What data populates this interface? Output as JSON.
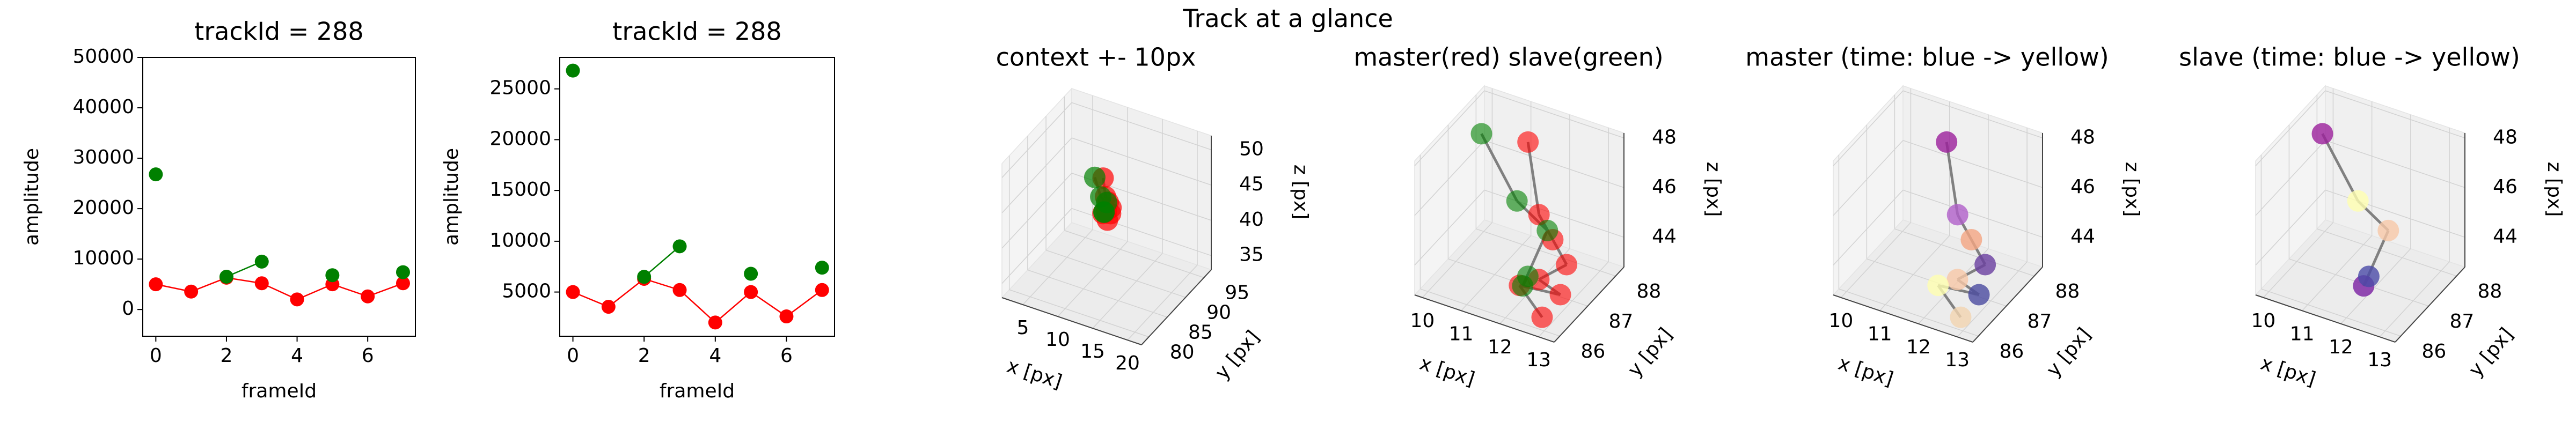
{
  "title": "Track at a glance",
  "chart_data": [
    {
      "type": "line",
      "title": "trackId = 288",
      "xlabel": "frameId",
      "ylabel": "amplitude",
      "x": [
        0,
        1,
        2,
        3,
        4,
        5,
        6,
        7
      ],
      "series": [
        {
          "color": "#ff0000",
          "values": [
            5000,
            3550,
            6300,
            5200,
            2000,
            5000,
            2600,
            5200
          ]
        },
        {
          "color": "#008000",
          "values": [
            26800,
            null,
            6500,
            9500,
            null,
            6800,
            null,
            7400
          ]
        }
      ],
      "xlim": [
        -0.37,
        7.35
      ],
      "xticks": [
        0,
        2,
        4,
        6
      ],
      "ylim": [
        -5300,
        50000
      ],
      "yticks": [
        0,
        10000,
        20000,
        30000,
        40000,
        50000
      ]
    },
    {
      "type": "line",
      "title": "trackId = 288",
      "xlabel": "frameId",
      "ylabel": "amplitude",
      "x": [
        0,
        1,
        2,
        3,
        4,
        5,
        6,
        7
      ],
      "series": [
        {
          "color": "#ff0000",
          "values": [
            5000,
            3550,
            6300,
            5200,
            2000,
            5000,
            2600,
            5200
          ]
        },
        {
          "color": "#008000",
          "values": [
            26800,
            null,
            6500,
            9500,
            null,
            6800,
            null,
            7400
          ]
        }
      ],
      "xlim": [
        -0.37,
        7.35
      ],
      "xticks": [
        0,
        2,
        4,
        6
      ],
      "ylim": [
        650,
        28100
      ],
      "yticks": [
        5000,
        10000,
        15000,
        20000,
        25000
      ]
    },
    {
      "type": "scatter3d",
      "title": "context +- 10px",
      "xlabel": "x [px]",
      "ylabel": "y [px]",
      "zlabel": "z [px]",
      "line_color": "#808080",
      "series": [
        {
          "color": "#ff0000",
          "alpha": 0.7,
          "x": [
            11.5,
            12.0,
            12.5,
            13.0,
            12.5,
            13.2,
            12.0,
            12.8
          ],
          "y": [
            87.5,
            87.2,
            87.0,
            86.8,
            86.5,
            86.3,
            86.5,
            86.2
          ],
          "z": [
            47.8,
            45.5,
            45.0,
            44.5,
            44.0,
            44.0,
            43.5,
            43.0
          ]
        },
        {
          "color": "#008000",
          "alpha": 0.7,
          "x": [
            10.3,
            11.0,
            12.0,
            12.3,
            12.0
          ],
          "y": [
            87.5,
            87.8,
            87.5,
            86.2,
            86.8
          ],
          "z": [
            47.5,
            44.8,
            44.5,
            44.0,
            43.5
          ]
        }
      ],
      "xlim": [
        2,
        22
      ],
      "xticks": [
        5,
        10,
        15,
        20
      ],
      "ylim": [
        78,
        97
      ],
      "yticks": [
        80,
        85,
        90,
        95
      ],
      "zlim": [
        33,
        52
      ],
      "zticks": [
        35,
        40,
        45,
        50
      ]
    },
    {
      "type": "scatter3d",
      "title": "master(red) slave(green)",
      "xlabel": "x [px]",
      "ylabel": "y [px]",
      "zlabel": "z [px]",
      "line_color": "#808080",
      "series": [
        {
          "color": "#ff0000",
          "alpha": 0.6,
          "x": [
            11.5,
            12.0,
            12.5,
            13.0,
            12.5,
            13.2,
            12.0,
            12.8
          ],
          "y": [
            87.5,
            87.2,
            87.0,
            86.8,
            86.5,
            86.3,
            86.5,
            86.2
          ],
          "z": [
            47.8,
            45.5,
            45.0,
            44.5,
            44.0,
            44.0,
            43.5,
            43.0
          ]
        },
        {
          "color": "#008000",
          "alpha": 0.6,
          "x": [
            10.3,
            11.0,
            12.0,
            12.3,
            12.0
          ],
          "y": [
            87.5,
            87.8,
            87.5,
            86.2,
            86.8
          ],
          "z": [
            47.5,
            44.8,
            44.5,
            44.0,
            43.5
          ]
        }
      ],
      "xlim": [
        9.8,
        13.4
      ],
      "xticks": [
        10,
        11,
        12,
        13
      ],
      "ylim": [
        85.8,
        88.3
      ],
      "yticks": [
        86,
        87,
        88
      ],
      "zlim": [
        42.8,
        48.2
      ],
      "zticks": [
        44,
        46,
        48
      ]
    },
    {
      "type": "scatter3d",
      "title": "master (time: blue -> yellow)",
      "xlabel": "x [px]",
      "ylabel": "y [px]",
      "zlabel": "z [px]",
      "line_color": "#808080",
      "series": [
        {
          "colors": [
            "#9b1f9b",
            "#b05fc9",
            "#f4a582",
            "#6a3fa0",
            "#f8c8a8",
            "#4b4ba0",
            "#ffffb0",
            "#f2d5b0"
          ],
          "alpha": 0.8,
          "x": [
            11.5,
            12.0,
            12.5,
            13.0,
            12.5,
            13.2,
            12.0,
            12.8
          ],
          "y": [
            87.5,
            87.2,
            87.0,
            86.8,
            86.5,
            86.3,
            86.5,
            86.2
          ],
          "z": [
            47.8,
            45.5,
            45.0,
            44.5,
            44.0,
            44.0,
            43.5,
            43.0
          ]
        }
      ],
      "xlim": [
        9.8,
        13.4
      ],
      "xticks": [
        10,
        11,
        12,
        13
      ],
      "ylim": [
        85.8,
        88.3
      ],
      "yticks": [
        86,
        87,
        88
      ],
      "zlim": [
        42.8,
        48.2
      ],
      "zticks": [
        44,
        46,
        48
      ]
    },
    {
      "type": "scatter3d",
      "title": "slave (time: blue -> yellow)",
      "xlabel": "x [px]",
      "ylabel": "y [px]",
      "zlabel": "z [px]",
      "line_color": "#808080",
      "series": [
        {
          "colors": [
            "#9b1f9b",
            "#ffffb0",
            "#f8c8a8",
            "#7b1fa2",
            "#4b4ba8"
          ],
          "alpha": 0.8,
          "x": [
            10.3,
            11.0,
            12.0,
            12.3,
            12.0
          ],
          "y": [
            87.5,
            87.8,
            87.5,
            86.2,
            86.8
          ],
          "z": [
            47.5,
            44.8,
            44.5,
            44.0,
            43.5
          ]
        }
      ],
      "xlim": [
        9.8,
        13.4
      ],
      "xticks": [
        10,
        11,
        12,
        13
      ],
      "ylim": [
        85.8,
        88.3
      ],
      "yticks": [
        86,
        87,
        88
      ],
      "zlim": [
        42.8,
        48.2
      ],
      "zticks": [
        44,
        46,
        48
      ]
    }
  ]
}
